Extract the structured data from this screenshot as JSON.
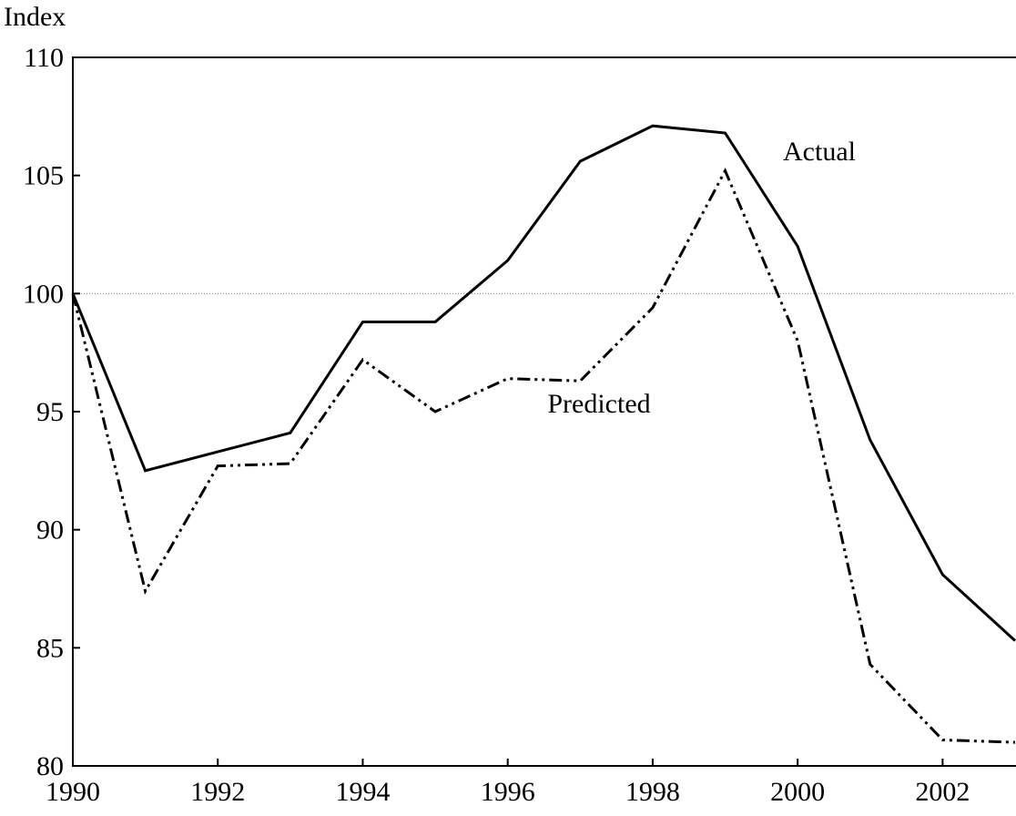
{
  "chart_data": {
    "type": "line",
    "y_label": "Index",
    "x": [
      1990,
      1991,
      1992,
      1993,
      1994,
      1995,
      1996,
      1997,
      1998,
      1999,
      2000,
      2001,
      2002,
      2003
    ],
    "series": [
      {
        "name": "Actual",
        "color": "#000000",
        "style": "solid",
        "values": [
          100,
          92.5,
          93.3,
          94.1,
          98.8,
          98.8,
          101.4,
          105.6,
          107.1,
          106.8,
          102.0,
          93.8,
          88.1,
          85.3
        ]
      },
      {
        "name": "Predicted",
        "color": "#000000",
        "style": "dashdot",
        "values": [
          100,
          87.4,
          92.7,
          92.8,
          97.2,
          95.0,
          96.4,
          96.3,
          99.4,
          105.2,
          98.0,
          84.3,
          81.1,
          81.0
        ]
      }
    ],
    "xlim": [
      1990,
      2003
    ],
    "ylim": [
      80,
      110
    ],
    "xticks": [
      1990,
      1992,
      1994,
      1996,
      1998,
      2000,
      2002
    ],
    "yticks": [
      80,
      85,
      90,
      95,
      100,
      105,
      110
    ],
    "reference_line": 100
  }
}
